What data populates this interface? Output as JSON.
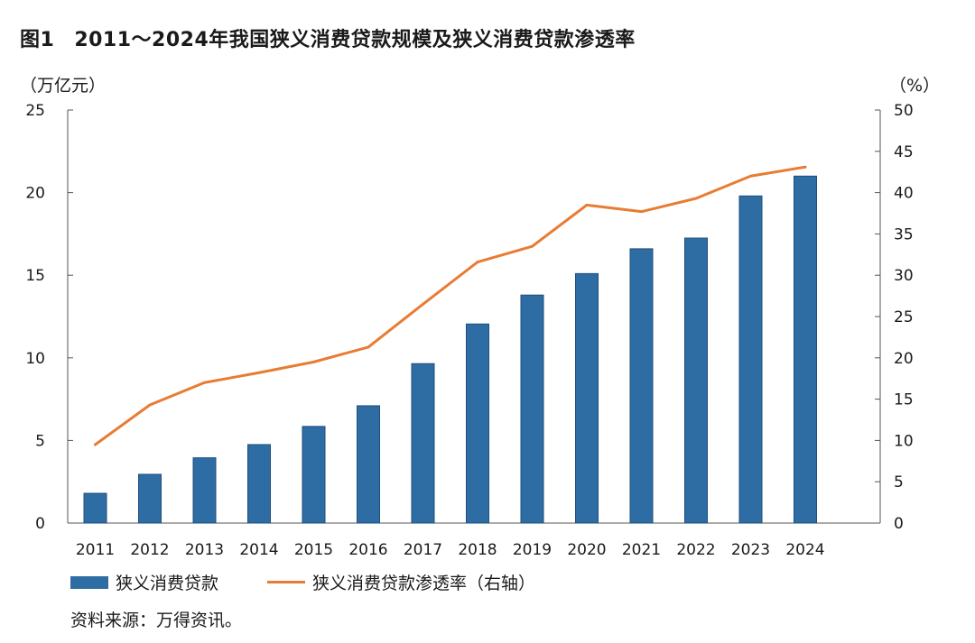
{
  "figure": {
    "label": "图1",
    "title": "2011～2024年我国狭义消费贷款规模及狭义消费贷款渗透率",
    "unit_left": "（万亿元）",
    "unit_right": "（%）",
    "source": "资料来源：万得资讯。"
  },
  "legend": {
    "bar_label": "狭义消费贷款",
    "line_label": "狭义消费贷款渗透率（右轴）"
  },
  "colors": {
    "bar": "#2e6ca4",
    "line": "#e87c33",
    "axis": "#555555"
  },
  "chart_data": {
    "type": "bar+line",
    "categories": [
      "2011",
      "2012",
      "2013",
      "2014",
      "2015",
      "2016",
      "2017",
      "2018",
      "2019",
      "2020",
      "2021",
      "2022",
      "2023",
      "2024"
    ],
    "series": [
      {
        "name": "狭义消费贷款",
        "type": "bar",
        "axis": "left",
        "values": [
          1.8,
          2.95,
          3.95,
          4.75,
          5.85,
          7.1,
          9.65,
          12.05,
          13.8,
          15.1,
          16.6,
          17.25,
          19.8,
          21.0
        ]
      },
      {
        "name": "狭义消费贷款渗透率（右轴）",
        "type": "line",
        "axis": "right",
        "values": [
          9.5,
          14.3,
          17.0,
          18.2,
          19.5,
          21.3,
          26.5,
          31.6,
          33.5,
          38.5,
          37.7,
          39.3,
          42.0,
          43.1
        ]
      }
    ],
    "y_left": {
      "range": [
        0,
        25
      ],
      "ticks": [
        0,
        5,
        10,
        15,
        20,
        25
      ]
    },
    "y_right": {
      "range": [
        0,
        50
      ],
      "ticks": [
        0,
        5,
        10,
        15,
        20,
        25,
        30,
        35,
        40,
        45,
        50
      ]
    },
    "grid": false,
    "legend_position": "bottom-left"
  }
}
